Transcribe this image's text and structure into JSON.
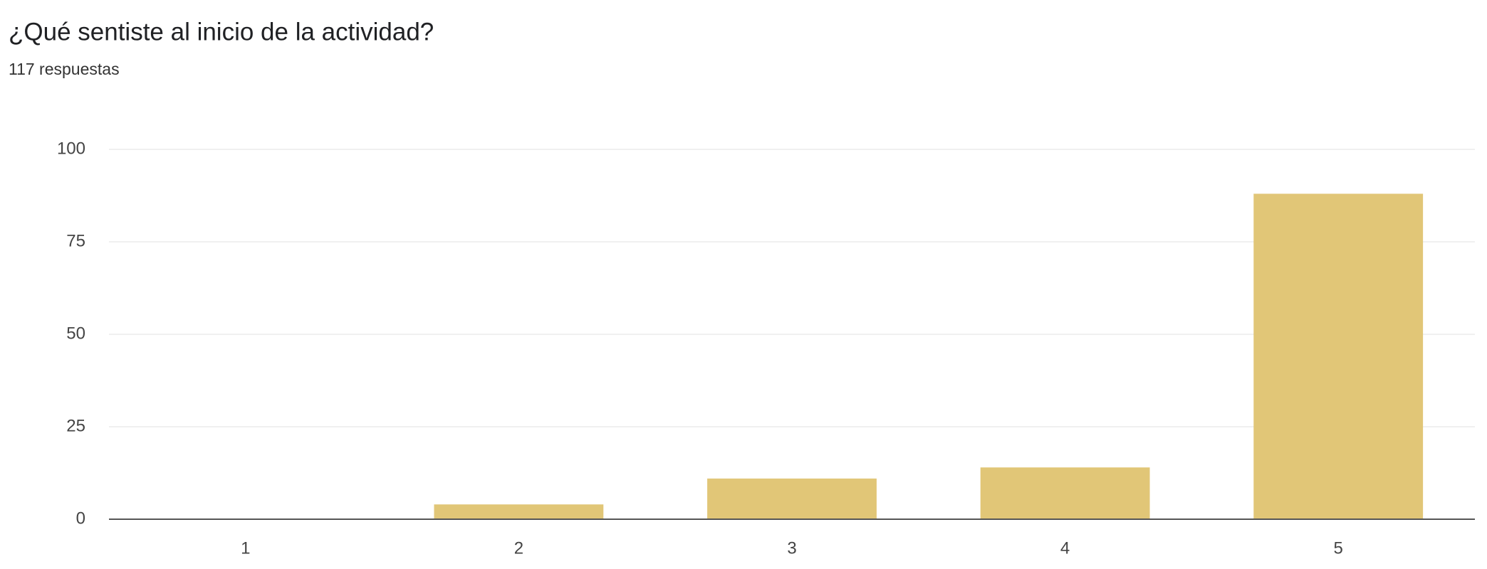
{
  "chart_data": {
    "type": "bar",
    "title": "¿Qué sentiste al inicio de la actividad?",
    "subtitle": "117 respuestas",
    "categories": [
      "1",
      "2",
      "3",
      "4",
      "5"
    ],
    "values": [
      0,
      4,
      11,
      14,
      88
    ],
    "color": "#e1c677",
    "ylim": [
      0,
      100
    ],
    "yticks": [
      0,
      25,
      50,
      75,
      100
    ],
    "grid": true
  }
}
